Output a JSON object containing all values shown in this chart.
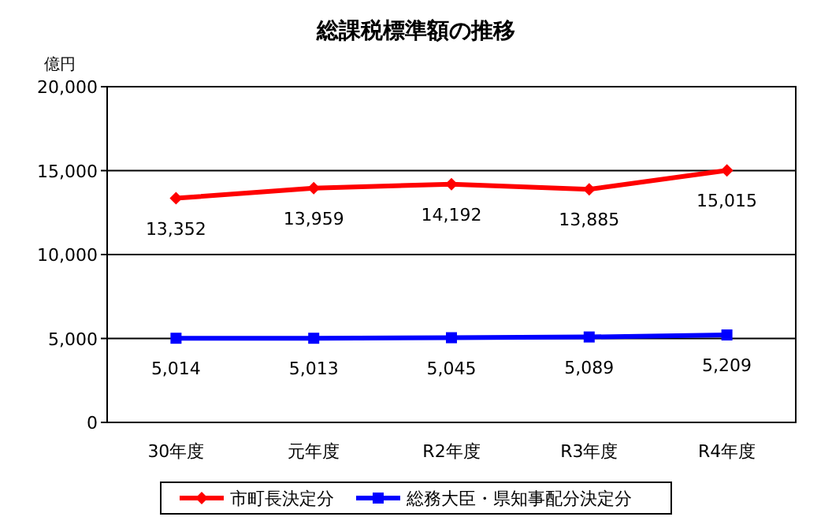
{
  "chart_data": {
    "type": "line",
    "title": "総課税標準額の推移",
    "ylabel": "億円",
    "categories": [
      "30年度",
      "元年度",
      "R2年度",
      "R3年度",
      "R4年度"
    ],
    "series": [
      {
        "name": "市町長決定分",
        "color": "#ff0000",
        "marker": "diamond",
        "values": [
          13352,
          13959,
          14192,
          13885,
          15015
        ],
        "value_labels": [
          "13,352",
          "13,959",
          "14,192",
          "13,885",
          "15,015"
        ]
      },
      {
        "name": "総務大臣・県知事配分決定分",
        "color": "#0000ff",
        "marker": "square",
        "values": [
          5014,
          5013,
          5045,
          5089,
          5209
        ],
        "value_labels": [
          "5,014",
          "5,013",
          "5,045",
          "5,089",
          "5,209"
        ]
      }
    ],
    "ylim": [
      0,
      20000
    ],
    "yticks": [
      {
        "value": 0,
        "label": "0"
      },
      {
        "value": 5000,
        "label": "5,000"
      },
      {
        "value": 10000,
        "label": "10,000"
      },
      {
        "value": 15000,
        "label": "15,000"
      },
      {
        "value": 20000,
        "label": "20,000"
      }
    ],
    "grid": "y",
    "legend": "bottom",
    "line_style": "solid"
  }
}
